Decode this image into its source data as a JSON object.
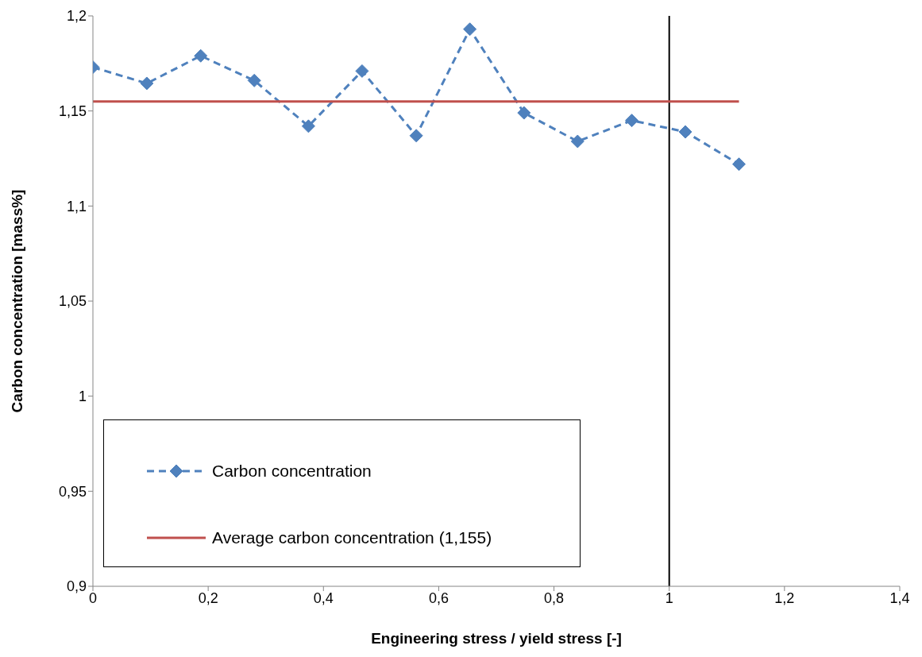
{
  "chart_data": {
    "type": "line",
    "xlabel": "Engineering stress / yield stress [-]",
    "ylabel": "Carbon concentration [mass%]",
    "series": [
      {
        "name": "Carbon concentration",
        "color": "#4f81bd",
        "marker": "diamond",
        "line_style": "dashed",
        "x": [
          0,
          0.0935,
          0.187,
          0.28,
          0.374,
          0.467,
          0.561,
          0.654,
          0.748,
          0.841,
          0.935,
          1.028,
          1.121
        ],
        "values": [
          1.173,
          1.1645,
          1.179,
          1.166,
          1.142,
          1.171,
          1.137,
          1.193,
          1.149,
          1.134,
          1.145,
          1.139,
          1.122
        ]
      },
      {
        "name": "Average carbon concentration (1,155)",
        "color": "#c0504d",
        "marker": "none",
        "line_style": "solid",
        "x": [
          0,
          1.121
        ],
        "values": [
          1.155,
          1.155
        ]
      }
    ],
    "ref_lines": [
      {
        "axis": "x",
        "value": 1,
        "color": "#000000"
      }
    ],
    "xlim": [
      0,
      1.4
    ],
    "xticks": [
      0,
      {
        "value": 0.2,
        "label": "0,2"
      },
      {
        "value": 0.4,
        "label": "0,4"
      },
      {
        "value": 0.6,
        "label": "0,6"
      },
      {
        "value": 0.8,
        "label": "0,8"
      },
      1,
      {
        "value": 1.2,
        "label": "1,2"
      },
      {
        "value": 1.4,
        "label": "1,4"
      }
    ],
    "ylim": [
      0.9,
      1.2
    ],
    "yticks": [
      {
        "value": 0.9,
        "label": "0,9"
      },
      {
        "value": 0.95,
        "label": "0,95"
      },
      1,
      {
        "value": 1.05,
        "label": "1,05"
      },
      {
        "value": 1.1,
        "label": "1,1"
      },
      {
        "value": 1.15,
        "label": "1,15"
      },
      {
        "value": 1.2,
        "label": "1,2"
      }
    ],
    "legend": "bottom left"
  }
}
